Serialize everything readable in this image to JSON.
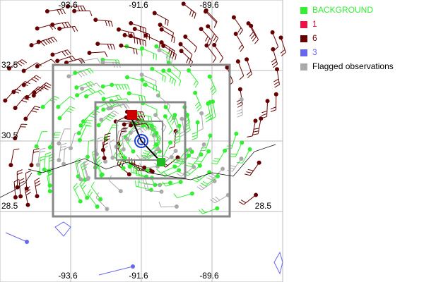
{
  "map": {
    "grid_labels": {
      "top": [
        "-93.6",
        "-91.6",
        "-89.6"
      ],
      "bottom": [
        "-93.6",
        "-91.6",
        "-89.6"
      ],
      "left": [
        "32.5",
        "30.5",
        "28.5"
      ],
      "right": [
        "28.5"
      ]
    },
    "legend": [
      {
        "label": "BACKGROUND",
        "color": "#33ee33"
      },
      {
        "label": "1",
        "color": "#ee1144"
      },
      {
        "label": "6",
        "color": "#660000"
      },
      {
        "label": "3",
        "color": "#6666ee"
      },
      {
        "label": "Flagged observations",
        "color": "#aaaaaa"
      }
    ]
  }
}
